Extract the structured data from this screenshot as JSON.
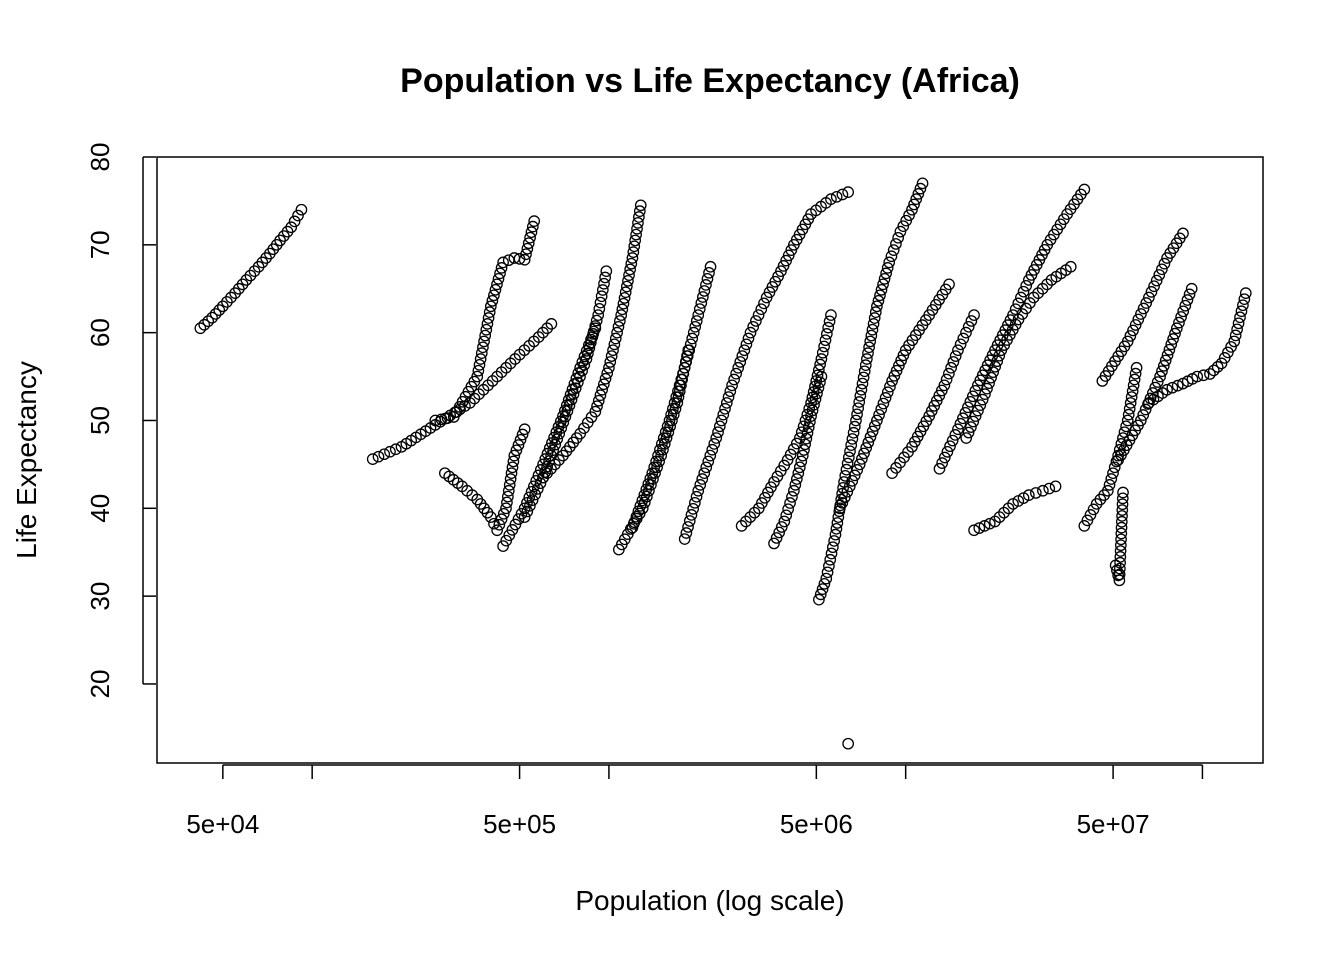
{
  "chart_data": {
    "type": "scatter",
    "title": "Population vs Life Expectancy (Africa)",
    "xlabel": "Population (log scale)",
    "ylabel": "Life Expectancy",
    "x_scale": "log",
    "xlim": [
      30000,
      160000000
    ],
    "ylim": [
      11,
      80
    ],
    "x_ticks": [
      50000,
      100000,
      500000,
      1000000,
      5000000,
      10000000,
      50000000,
      100000000
    ],
    "x_tick_labels": [
      "5e+04",
      "",
      "5e+05",
      "",
      "5e+06",
      "",
      "5e+07",
      ""
    ],
    "y_ticks": [
      20,
      30,
      40,
      50,
      60,
      70,
      80
    ],
    "y_tick_labels": [
      "20",
      "30",
      "40",
      "50",
      "60",
      "70",
      "80"
    ],
    "grid": false,
    "legend": "none",
    "marker": "open-circle",
    "marker_color": "#000000",
    "series": [
      {
        "x": [
          42000,
          46000,
          50000,
          55000,
          60000,
          66000,
          72000,
          78000,
          85000,
          92000
        ],
        "y": [
          60.5,
          61.7,
          63.0,
          64.5,
          66.0,
          67.5,
          69.0,
          70.5,
          72.0,
          74.0
        ]
      },
      {
        "x": [
          160000,
          200000,
          260000,
          340000,
          420000,
          500000,
          580000,
          640000
        ],
        "y": [
          45.6,
          47.0,
          49.5,
          52.0,
          55.0,
          57.5,
          59.5,
          61.0
        ]
      },
      {
        "x": [
          260000,
          300000,
          360000,
          400000,
          440000,
          480000,
          520000,
          560000
        ],
        "y": [
          50.0,
          50.4,
          55.0,
          63.0,
          68.0,
          68.5,
          68.3,
          72.7
        ]
      },
      {
        "x": [
          280000,
          320000,
          360000,
          400000,
          420000,
          450000,
          480000,
          520000
        ],
        "y": [
          44.0,
          42.5,
          41.0,
          39.0,
          37.5,
          40.0,
          46.0,
          49.0
        ]
      },
      {
        "x": [
          440000,
          520000,
          600000,
          700000,
          800000,
          900000
        ],
        "y": [
          35.7,
          40.0,
          45.0,
          50.5,
          56.0,
          60.5
        ]
      },
      {
        "x": [
          520000,
          600000,
          680000,
          760000,
          840000,
          920000,
          980000
        ],
        "y": [
          39.0,
          43.5,
          48.5,
          53.0,
          57.0,
          62.0,
          67.0
        ]
      },
      {
        "x": [
          600000,
          700000,
          800000,
          900000,
          1000000,
          1100000,
          1200000,
          1280000
        ],
        "y": [
          43.5,
          46.0,
          48.5,
          51.0,
          56.0,
          62.0,
          68.5,
          74.5
        ]
      },
      {
        "x": [
          1080000,
          1300000,
          1500000,
          1700000,
          1850000
        ],
        "y": [
          35.3,
          40.0,
          46.0,
          52.0,
          58.0
        ]
      },
      {
        "x": [
          1200000,
          1400000,
          1600000,
          1800000,
          2000000,
          2200000
        ],
        "y": [
          37.8,
          44.0,
          50.0,
          56.0,
          62.0,
          67.5
        ]
      },
      {
        "x": [
          1800000,
          2000000,
          2300000,
          2600000,
          3000000,
          3400000,
          3800000,
          4200000,
          4800000,
          5600000,
          6400000
        ],
        "y": [
          36.5,
          42.0,
          48.0,
          54.0,
          60.0,
          64.0,
          67.0,
          70.0,
          73.5,
          75.2,
          76.0
        ]
      },
      {
        "x": [
          2800000,
          3200000,
          3600000,
          4000000,
          4400000,
          4800000,
          5200000,
          5600000
        ],
        "y": [
          38.0,
          40.0,
          43.0,
          45.5,
          48.0,
          52.0,
          57.0,
          62.0
        ]
      },
      {
        "x": [
          3600000,
          3900000,
          4200000,
          4500000,
          4800000,
          5200000
        ],
        "y": [
          36.0,
          38.5,
          42.0,
          46.0,
          50.5,
          55.0
        ]
      },
      {
        "x": [
          5100000,
          5400000,
          5800000,
          6200000,
          6800000,
          7400000,
          8000000,
          8800000,
          9600000,
          10500000,
          11400000
        ],
        "y": [
          29.6,
          32.0,
          37.0,
          43.0,
          50.0,
          57.0,
          63.0,
          68.0,
          71.5,
          74.0,
          77.0
        ]
      },
      {
        "x": [
          6400000
        ],
        "y": [
          13.2
        ]
      },
      {
        "x": [
          6000000,
          7000000,
          8000000,
          9000000,
          10000000,
          12000000,
          14000000
        ],
        "y": [
          40.0,
          45.0,
          50.0,
          54.5,
          58.0,
          62.0,
          65.5
        ]
      },
      {
        "x": [
          9000000,
          10500000,
          12000000,
          13500000,
          15000000,
          17000000
        ],
        "y": [
          44.0,
          47.0,
          50.5,
          54.0,
          58.0,
          62.0
        ]
      },
      {
        "x": [
          13000000,
          15000000,
          17500000,
          20000000,
          23000000,
          26000000,
          30000000,
          35000000,
          40000000
        ],
        "y": [
          44.5,
          49.0,
          54.0,
          58.0,
          62.0,
          66.0,
          70.0,
          73.5,
          76.3
        ]
      },
      {
        "x": [
          16000000,
          18500000,
          21000000,
          24000000,
          27000000,
          31000000,
          36000000
        ],
        "y": [
          48.0,
          53.0,
          58.0,
          61.5,
          64.0,
          66.0,
          67.5
        ]
      },
      {
        "x": [
          17000000,
          20000000,
          23000000,
          26000000,
          29000000,
          32000000
        ],
        "y": [
          37.5,
          38.5,
          40.5,
          41.5,
          42.0,
          42.5
        ]
      },
      {
        "x": [
          40000000,
          44000000,
          48000000,
          52000000,
          56000000,
          60000000
        ],
        "y": [
          38.0,
          40.5,
          42.0,
          46.0,
          50.0,
          56.0
        ]
      },
      {
        "x": [
          52000000,
          62000000,
          72000000,
          82000000,
          92000000
        ],
        "y": [
          45.5,
          50.0,
          55.0,
          60.5,
          65.0
        ]
      },
      {
        "x": [
          46000000,
          56000000,
          66000000,
          76000000,
          86000000
        ],
        "y": [
          54.5,
          59.0,
          64.0,
          68.5,
          71.3
        ]
      },
      {
        "x": [
          66000000,
          76000000,
          86000000,
          96000000,
          106000000,
          116000000,
          128000000,
          140000000
        ],
        "y": [
          52.0,
          53.5,
          54.2,
          55.0,
          55.3,
          56.5,
          59.0,
          64.5
        ]
      },
      {
        "x": [
          51000000,
          52500000,
          54000000
        ],
        "y": [
          33.5,
          31.8,
          41.8
        ]
      }
    ]
  }
}
